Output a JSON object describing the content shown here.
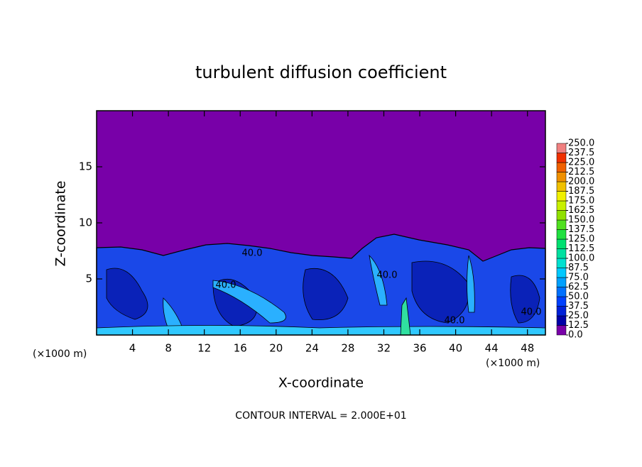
{
  "chart_data": {
    "type": "contour",
    "title": "turbulent diffusion coefficient",
    "xlabel": "X-coordinate",
    "ylabel": "Z-coordinate",
    "x_unit": "(×1000 m)",
    "x_unit_right": "(×1000 m)",
    "footnote": "CONTOUR INTERVAL = 2.000E+01",
    "xlim": [
      0,
      50
    ],
    "xticks": [
      4,
      8,
      12,
      16,
      20,
      24,
      28,
      32,
      36,
      40,
      44,
      48
    ],
    "ylim": [
      0,
      20
    ],
    "yticks": [
      5,
      10,
      15
    ],
    "background_color": "#7800a8",
    "contour_labels": [
      {
        "value": 40,
        "label": "40.0"
      },
      {
        "value": 40,
        "label": "40.0"
      },
      {
        "value": 40,
        "label": "40.0"
      },
      {
        "value": 40,
        "label": "40.0"
      },
      {
        "value": 40,
        "label": "40.0"
      }
    ],
    "colorbar_ticks": [
      {
        "value": 0,
        "label": "0.0"
      },
      {
        "value": 12.5,
        "label": "12.5"
      },
      {
        "value": 25,
        "label": "25.0"
      },
      {
        "value": 37.5,
        "label": "37.5"
      },
      {
        "value": 50,
        "label": "50.0"
      },
      {
        "value": 62.5,
        "label": "62.5"
      },
      {
        "value": 75,
        "label": "75.0"
      },
      {
        "value": 87.5,
        "label": "87.5"
      },
      {
        "value": 100,
        "label": "100.0"
      },
      {
        "value": 112.5,
        "label": "112.5"
      },
      {
        "value": 125,
        "label": "125.0"
      },
      {
        "value": 137.5,
        "label": "137.5"
      },
      {
        "value": 150,
        "label": "150.0"
      },
      {
        "value": 162.5,
        "label": "162.5"
      },
      {
        "value": 175,
        "label": "175.0"
      },
      {
        "value": 187.5,
        "label": "187.5"
      },
      {
        "value": 200,
        "label": "200.0"
      },
      {
        "value": 212.5,
        "label": "212.5"
      },
      {
        "value": 225,
        "label": "225.0"
      },
      {
        "value": 237.5,
        "label": "237.5"
      },
      {
        "value": 250,
        "label": "250.0"
      }
    ],
    "colorbar_colors": [
      "#7800a8",
      "#0000a8",
      "#0020d8",
      "#0040ff",
      "#0070ff",
      "#00a0ff",
      "#00c8ff",
      "#00e0d0",
      "#00e0a0",
      "#00e070",
      "#20e040",
      "#50e020",
      "#90e000",
      "#c8f000",
      "#f0f000",
      "#f0c000",
      "#f09000",
      "#f06000",
      "#f03000",
      "#f08080"
    ]
  }
}
